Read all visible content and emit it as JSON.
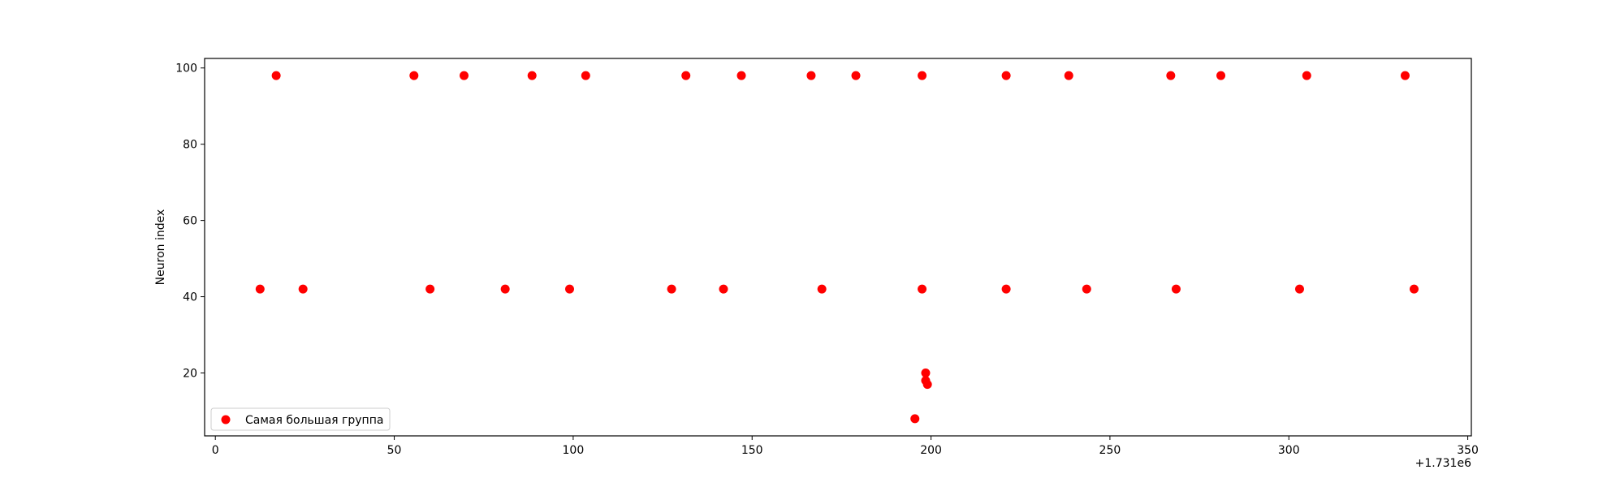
{
  "chart_data": {
    "type": "scatter",
    "title": "",
    "xlabel": "",
    "ylabel": "Neuron index",
    "x_offset_label": "+1.731e6",
    "xlim": [
      -3,
      351
    ],
    "ylim": [
      3.5,
      102.5
    ],
    "xticks": [
      0,
      50,
      100,
      150,
      200,
      250,
      300,
      350
    ],
    "yticks": [
      20,
      40,
      60,
      80,
      100
    ],
    "grid": false,
    "legend": {
      "placement": "lower-left"
    },
    "series": [
      {
        "name": "Самая большая группа",
        "color": "#ff0000",
        "marker": "circle",
        "points": [
          {
            "x": 12.5,
            "y": 42
          },
          {
            "x": 17,
            "y": 98
          },
          {
            "x": 24.5,
            "y": 42
          },
          {
            "x": 55.5,
            "y": 98
          },
          {
            "x": 60,
            "y": 42
          },
          {
            "x": 69.5,
            "y": 98
          },
          {
            "x": 81,
            "y": 42
          },
          {
            "x": 88.5,
            "y": 98
          },
          {
            "x": 99,
            "y": 42
          },
          {
            "x": 103.5,
            "y": 98
          },
          {
            "x": 127.5,
            "y": 42
          },
          {
            "x": 131.5,
            "y": 98
          },
          {
            "x": 142,
            "y": 42
          },
          {
            "x": 147,
            "y": 98
          },
          {
            "x": 166.5,
            "y": 98
          },
          {
            "x": 169.5,
            "y": 42
          },
          {
            "x": 179,
            "y": 98
          },
          {
            "x": 195.5,
            "y": 8
          },
          {
            "x": 197.5,
            "y": 98
          },
          {
            "x": 197.5,
            "y": 42
          },
          {
            "x": 198.5,
            "y": 20
          },
          {
            "x": 198.5,
            "y": 18
          },
          {
            "x": 199,
            "y": 17
          },
          {
            "x": 221,
            "y": 98
          },
          {
            "x": 221,
            "y": 42
          },
          {
            "x": 238.5,
            "y": 98
          },
          {
            "x": 243.5,
            "y": 42
          },
          {
            "x": 267,
            "y": 98
          },
          {
            "x": 268.5,
            "y": 42
          },
          {
            "x": 281,
            "y": 98
          },
          {
            "x": 303,
            "y": 42
          },
          {
            "x": 305,
            "y": 98
          },
          {
            "x": 332.5,
            "y": 98
          },
          {
            "x": 335,
            "y": 42
          }
        ]
      }
    ]
  }
}
